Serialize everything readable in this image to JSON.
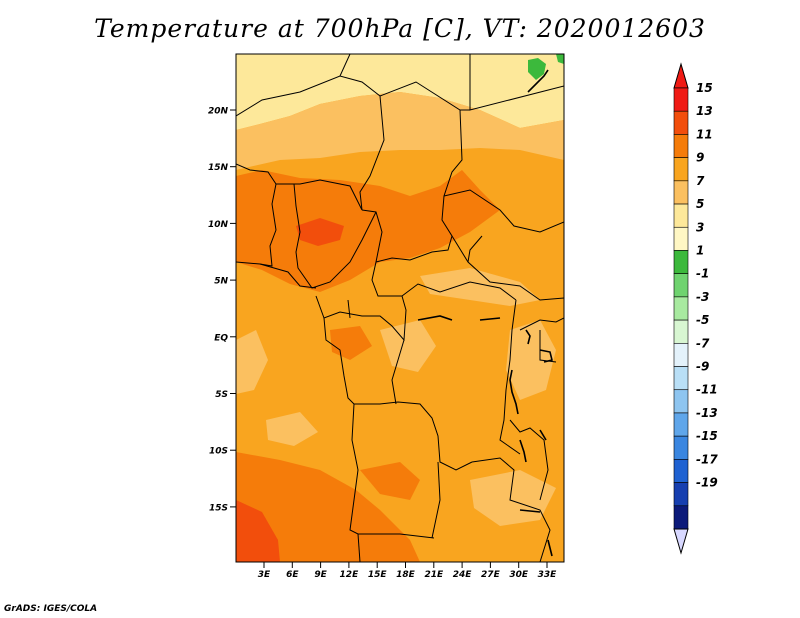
{
  "title": "Temperature at 700hPa [C], VT: 2020012603",
  "credit": "GrADS: IGES/COLA",
  "map": {
    "lat_labels": [
      "20N",
      "15N",
      "10N",
      "5N",
      "EQ",
      "5S",
      "10S",
      "15S"
    ],
    "lon_labels": [
      "3E",
      "6E",
      "9E",
      "12E",
      "15E",
      "18E",
      "21E",
      "24E",
      "27E",
      "30E",
      "33E"
    ],
    "colors": {
      "pale_yellow": "#fde89a",
      "light_orange": "#fbc060",
      "orange": "#f9a51f",
      "dark_orange": "#f57c0a",
      "red_orange": "#f24e0c",
      "green": "#3cb93c",
      "border": "#000000"
    }
  },
  "colorbar": {
    "labels": [
      "15",
      "13",
      "11",
      "9",
      "7",
      "5",
      "3",
      "1",
      "-1",
      "-3",
      "-5",
      "-7",
      "-9",
      "-11",
      "-13",
      "-15",
      "-17",
      "-19"
    ],
    "colors": [
      "#f01a14",
      "#f24e0c",
      "#f57c0a",
      "#f9a51f",
      "#fbc060",
      "#fde89a",
      "#fff7c4",
      "#3cb93c",
      "#6fd36f",
      "#a8eaa0",
      "#d8f6d2",
      "#e4f2fb",
      "#b9dff6",
      "#8ec5f0",
      "#5fa6ea",
      "#3a86e0",
      "#1f62d2",
      "#163fb0",
      "#0c1a7a"
    ],
    "top_arrow_color": "#f01a14",
    "bottom_arrow_color": "#d8d8ff"
  }
}
